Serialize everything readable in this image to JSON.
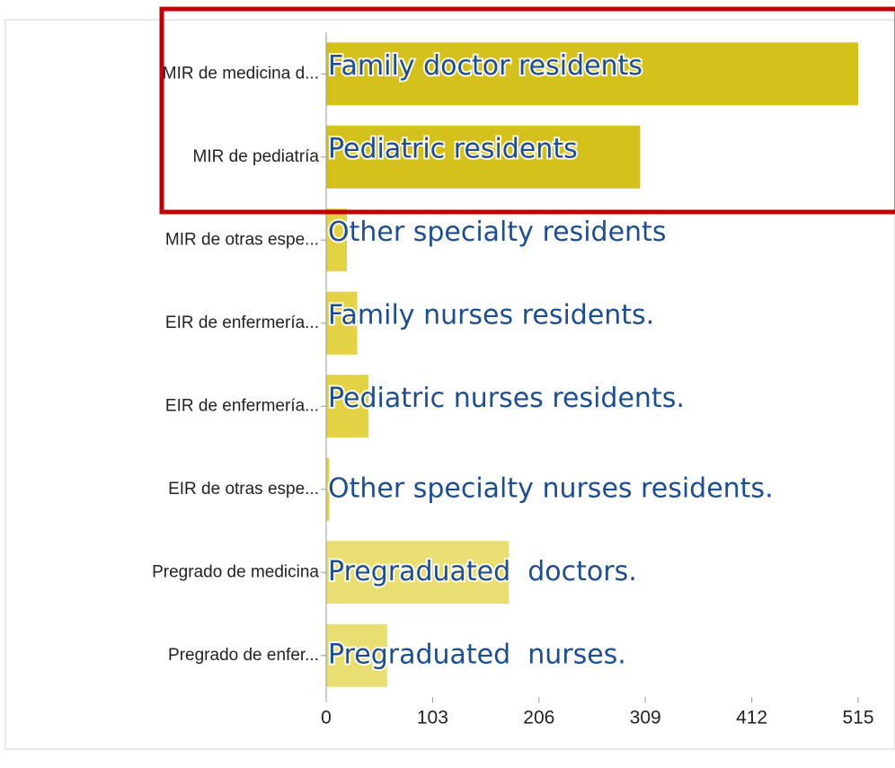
{
  "chart_data": {
    "type": "bar",
    "orientation": "horizontal",
    "categories": [
      "MIR de medicina d...",
      "MIR de pediatría",
      "MIR de otras espe...",
      "EIR de enfermería...",
      "EIR de enfermería...",
      "EIR de otras espe...",
      "Pregrado de medicina",
      "Pregrado de enfer..."
    ],
    "values": [
      515,
      304,
      20,
      30,
      41,
      3,
      177,
      59
    ],
    "colors": [
      "#d5c11c",
      "#d5c11c",
      "#e2d244",
      "#e2d244",
      "#e2d244",
      "#e2d244",
      "#e8de72",
      "#e8de72"
    ],
    "annotations": [
      "Family doctor residents",
      "Pediatric residents",
      "Other specialty residents",
      "Family nurses residents.",
      "Pediatric nurses residents.",
      "Other specialty nurses residents.",
      "Pregraduated  doctors.",
      "Pregraduated  nurses."
    ],
    "xlim": [
      0,
      515
    ],
    "xticks": [
      0,
      103,
      206,
      309,
      412,
      515
    ],
    "grid": false
  }
}
